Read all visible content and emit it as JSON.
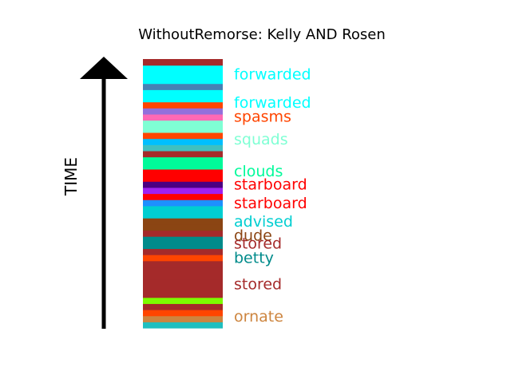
{
  "chart_data": {
    "type": "stacked-timeline",
    "title": "WithoutRemorse: Kelly AND Rosen",
    "ylabel": "TIME",
    "arrow": true,
    "segments": [
      {
        "color": "#1fbfbf"
      },
      {
        "color": "#cd853f"
      },
      {
        "color": "#ff4500"
      },
      {
        "color": "#a52a2a"
      },
      {
        "color": "#7cfc00"
      },
      {
        "color": "#a52a2a"
      },
      {
        "color": "#a52a2a"
      },
      {
        "color": "#a52a2a"
      },
      {
        "color": "#a52a2a"
      },
      {
        "color": "#a52a2a"
      },
      {
        "color": "#a52a2a"
      },
      {
        "color": "#ff4500"
      },
      {
        "color": "#a52a2a"
      },
      {
        "color": "#008b8b"
      },
      {
        "color": "#008b8b"
      },
      {
        "color": "#a52a2a"
      },
      {
        "color": "#8b4513"
      },
      {
        "color": "#8b4513"
      },
      {
        "color": "#00ced1"
      },
      {
        "color": "#00ced1"
      },
      {
        "color": "#1e90ff"
      },
      {
        "color": "#ff0000"
      },
      {
        "color": "#a020f0"
      },
      {
        "color": "#4b0082"
      },
      {
        "color": "#ff0000"
      },
      {
        "color": "#ff0000"
      },
      {
        "color": "#00fa9a"
      },
      {
        "color": "#00fa9a"
      },
      {
        "color": "#a52a2a"
      },
      {
        "color": "#40c0c0"
      },
      {
        "color": "#00bfff"
      },
      {
        "color": "#ff4500"
      },
      {
        "color": "#7fffd4"
      },
      {
        "color": "#7fffd4"
      },
      {
        "color": "#ff69b4"
      },
      {
        "color": "#9370db"
      },
      {
        "color": "#ff4500"
      },
      {
        "color": "#00ffff"
      },
      {
        "color": "#00ffff"
      },
      {
        "color": "#4682b4"
      },
      {
        "color": "#00ffff"
      },
      {
        "color": "#00ffff"
      },
      {
        "color": "#00ffff"
      },
      {
        "color": "#a52a2a"
      }
    ],
    "labels": [
      {
        "text": "forwarded",
        "color": "#00ffff",
        "position": 0.945
      },
      {
        "text": "forwarded",
        "color": "#00ffff",
        "position": 0.84
      },
      {
        "text": "spasms",
        "color": "#ff4500",
        "position": 0.788
      },
      {
        "text": "squads",
        "color": "#7fffd4",
        "position": 0.704
      },
      {
        "text": "clouds",
        "color": "#00fa9a",
        "position": 0.585
      },
      {
        "text": "starboard",
        "color": "#ff0000",
        "position": 0.535
      },
      {
        "text": "starboard",
        "color": "#ff0000",
        "position": 0.466
      },
      {
        "text": "advised",
        "color": "#00ced1",
        "position": 0.398
      },
      {
        "text": "dude",
        "color": "#8b4513",
        "position": 0.346
      },
      {
        "text": "stored",
        "color": "#a52a2a",
        "position": 0.316
      },
      {
        "text": "betty",
        "color": "#008b8b",
        "position": 0.263
      },
      {
        "text": "stored",
        "color": "#a52a2a",
        "position": 0.164
      },
      {
        "text": "ornate",
        "color": "#cd853f",
        "position": 0.045
      }
    ]
  }
}
